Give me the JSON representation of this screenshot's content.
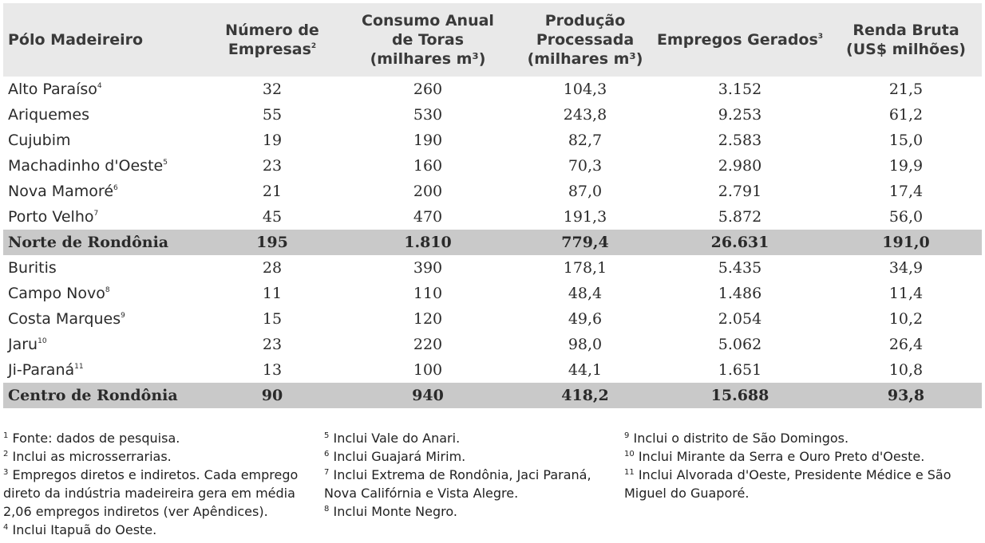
{
  "table": {
    "headers": [
      {
        "lines": [
          "Pólo Madeireiro"
        ],
        "sup": ""
      },
      {
        "lines": [
          "Número de",
          "Empresas"
        ],
        "sup": "2"
      },
      {
        "lines": [
          "Consumo Anual",
          "de Toras",
          "(milhares m³)"
        ],
        "sup": ""
      },
      {
        "lines": [
          "Produção",
          "Processada",
          "(milhares m³)"
        ],
        "sup": ""
      },
      {
        "lines": [
          "Empregos Gerados"
        ],
        "sup": "3"
      },
      {
        "lines": [
          "Renda Bruta",
          "(US$ milhões)"
        ],
        "sup": ""
      }
    ],
    "rows": [
      {
        "name": "Alto Paraíso",
        "sup": "4",
        "values": [
          "32",
          "260",
          "104,3",
          "3.152",
          "21,5"
        ],
        "total": false
      },
      {
        "name": "Ariquemes",
        "sup": "",
        "values": [
          "55",
          "530",
          "243,8",
          "9.253",
          "61,2"
        ],
        "total": false
      },
      {
        "name": "Cujubim",
        "sup": "",
        "values": [
          "19",
          "190",
          "82,7",
          "2.583",
          "15,0"
        ],
        "total": false
      },
      {
        "name": "Machadinho d'Oeste",
        "sup": "5",
        "values": [
          "23",
          "160",
          "70,3",
          "2.980",
          "19,9"
        ],
        "total": false
      },
      {
        "name": "Nova Mamoré",
        "sup": "6",
        "values": [
          "21",
          "200",
          "87,0",
          "2.791",
          "17,4"
        ],
        "total": false
      },
      {
        "name": "Porto Velho",
        "sup": "7",
        "values": [
          "45",
          "470",
          "191,3",
          "5.872",
          "56,0"
        ],
        "total": false
      },
      {
        "name": "Norte de Rondônia",
        "sup": "",
        "values": [
          "195",
          "1.810",
          "779,4",
          "26.631",
          "191,0"
        ],
        "total": true
      },
      {
        "name": "Buritis",
        "sup": "",
        "values": [
          "28",
          "390",
          "178,1",
          "5.435",
          "34,9"
        ],
        "total": false
      },
      {
        "name": "Campo Novo",
        "sup": "8",
        "values": [
          "11",
          "110",
          "48,4",
          "1.486",
          "11,4"
        ],
        "total": false
      },
      {
        "name": "Costa Marques",
        "sup": "9",
        "values": [
          "15",
          "120",
          "49,6",
          "2.054",
          "10,2"
        ],
        "total": false
      },
      {
        "name": "Jaru",
        "sup": "10",
        "values": [
          "23",
          "220",
          "98,0",
          "5.062",
          "26,4"
        ],
        "total": false
      },
      {
        "name": "Ji-Paraná",
        "sup": "11",
        "values": [
          "13",
          "100",
          "44,1",
          "1.651",
          "10,8"
        ],
        "total": false
      },
      {
        "name": "Centro de Rondônia",
        "sup": "",
        "values": [
          "90",
          "940",
          "418,2",
          "15.688",
          "93,8"
        ],
        "total": true
      }
    ]
  },
  "footnotes": {
    "col1": [
      {
        "sup": "1",
        "text": "Fonte: dados de pesquisa."
      },
      {
        "sup": "2",
        "text": "Inclui as microsserrarias."
      },
      {
        "sup": "3",
        "text": "Empregos diretos e indiretos. Cada emprego direto da indústria madeireira gera em média 2,06 empregos indiretos (ver Apêndices)."
      },
      {
        "sup": "4",
        "text": "Inclui Itapuã do Oeste."
      }
    ],
    "col2": [
      {
        "sup": "5",
        "text": "Inclui Vale do Anari."
      },
      {
        "sup": "6",
        "text": "Inclui Guajará Mirim."
      },
      {
        "sup": "7",
        "text": "Inclui Extrema de Rondônia, Jaci Paraná, Nova Califórnia e Vista Alegre."
      },
      {
        "sup": "8",
        "text": "Inclui Monte Negro."
      }
    ],
    "col3": [
      {
        "sup": "9",
        "text": "Inclui o distrito de São Domingos."
      },
      {
        "sup": "10",
        "text": "Inclui Mirante da Serra e Ouro Preto d'Oeste."
      },
      {
        "sup": "11",
        "text": "Inclui Alvorada d'Oeste, Presidente Médice e São Miguel do Guaporé."
      }
    ]
  }
}
